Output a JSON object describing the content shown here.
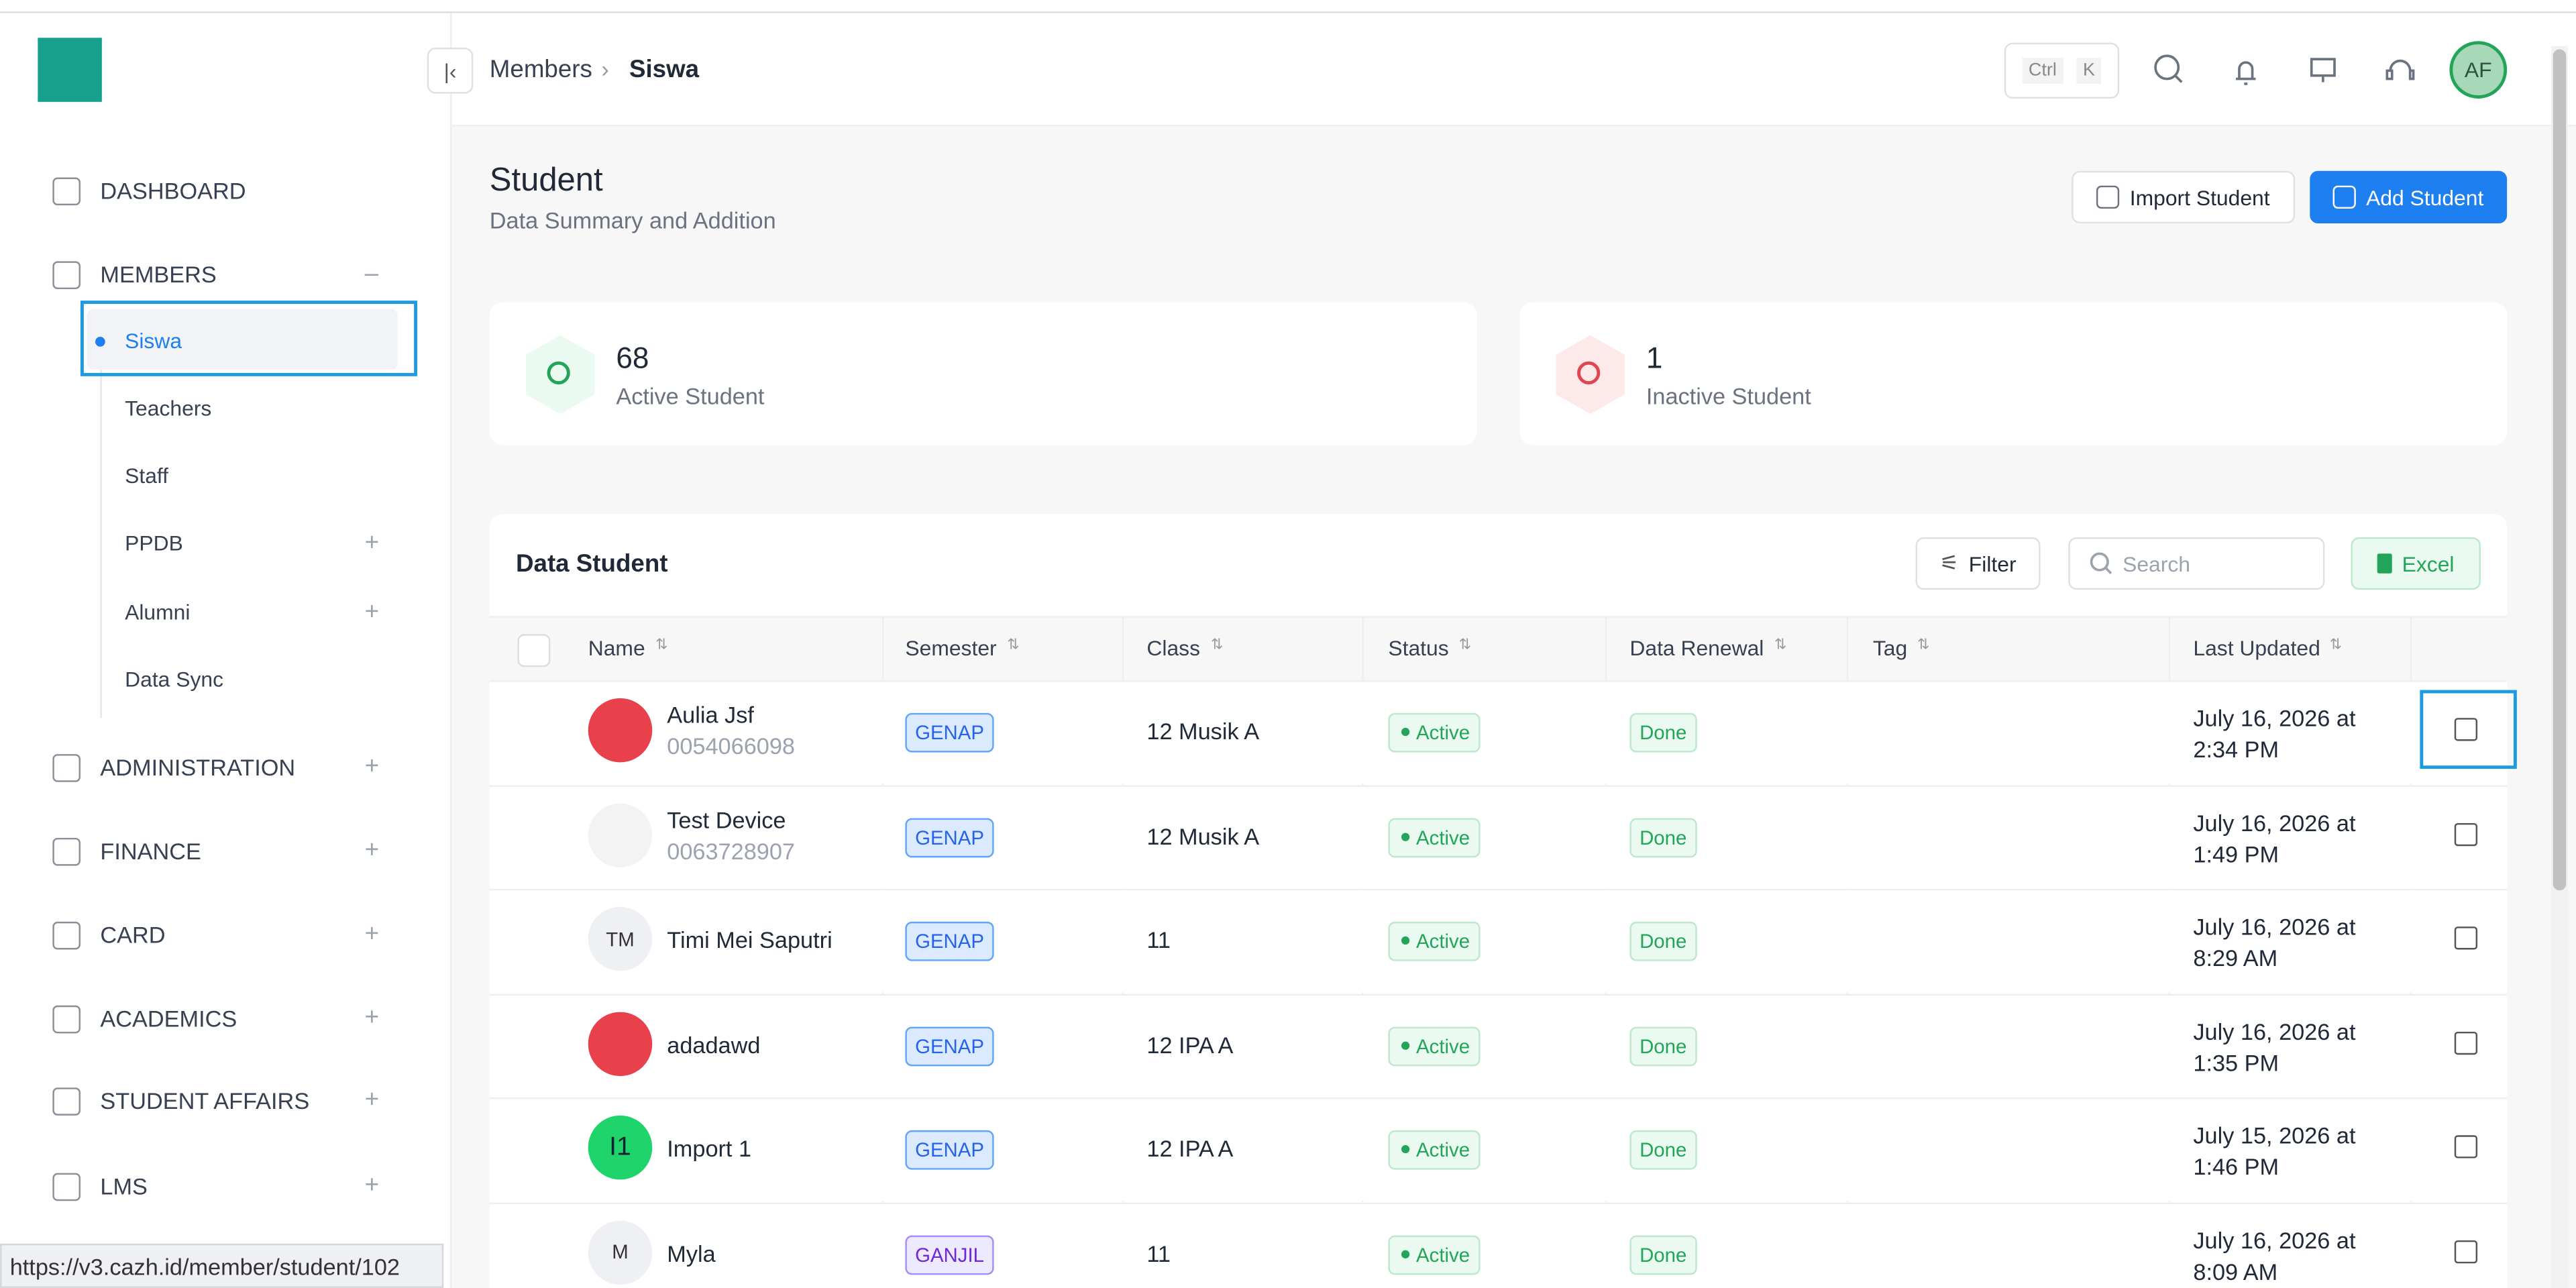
{
  "header": {
    "breadcrumb": [
      "Members",
      "Siswa"
    ],
    "shortcut": [
      "Ctrl",
      "K"
    ],
    "avatar": "AF"
  },
  "sidebar": {
    "items": [
      {
        "label": "DASHBOARD"
      },
      {
        "label": "MEMBERS",
        "children": [
          "Siswa",
          "Teachers",
          "Staff",
          "PPDB",
          "Alumni",
          "Data Sync"
        ]
      },
      {
        "label": "ADMINISTRATION"
      },
      {
        "label": "FINANCE"
      },
      {
        "label": "CARD"
      },
      {
        "label": "ACADEMICS"
      },
      {
        "label": "STUDENT AFFAIRS"
      },
      {
        "label": "LMS"
      }
    ]
  },
  "page": {
    "title": "Student",
    "subtitle": "Data Summary and Addition",
    "import_button": "Import Student",
    "add_button": "Add Student"
  },
  "stats": [
    {
      "value": 68,
      "label": "Active Student"
    },
    {
      "value": 1,
      "label": "Inactive Student"
    }
  ],
  "table": {
    "title": "Data Student",
    "filter": "Filter",
    "search": "Search",
    "excel": "Excel",
    "columns": [
      "Name",
      "Semester",
      "Class",
      "Status",
      "Data Renewal",
      "Tag",
      "Last Updated"
    ],
    "rows": [
      {
        "name": "Aulia Jsf",
        "id": "0054066098",
        "semester": "GENAP",
        "class": "12 Musik A",
        "status": "Active",
        "renewal": "Done",
        "updated": "July 16, 2026 at 2:34 PM"
      },
      {
        "name": "Test Device",
        "id": "0063728907",
        "semester": "GENAP",
        "class": "12 Musik A",
        "status": "Active",
        "renewal": "Done",
        "updated": "July 16, 2026 at 1:49 PM"
      },
      {
        "initials": "TM",
        "name": "Timi Mei Saputri",
        "semester": "GENAP",
        "class": "11",
        "status": "Active",
        "renewal": "Done",
        "updated": "July 16, 2026 at 8:29 AM"
      },
      {
        "name": "adadawd",
        "semester": "GENAP",
        "class": "12 IPA A",
        "status": "Active",
        "renewal": "Done",
        "updated": "July 16, 2026 at 1:35 PM"
      },
      {
        "initials": "I1",
        "name": "Import 1",
        "semester": "GENAP",
        "class": "12 IPA A",
        "status": "Active",
        "renewal": "Done",
        "updated": "July 15, 2026 at 1:46 PM"
      },
      {
        "initials": "M",
        "name": "Myla",
        "semester": "GANJIL",
        "class": "11",
        "status": "Active",
        "renewal": "Done",
        "updated": "July 16, 2026 at 8:09 AM"
      }
    ]
  },
  "status_bar": "https://v3.cazh.id/member/student/102"
}
